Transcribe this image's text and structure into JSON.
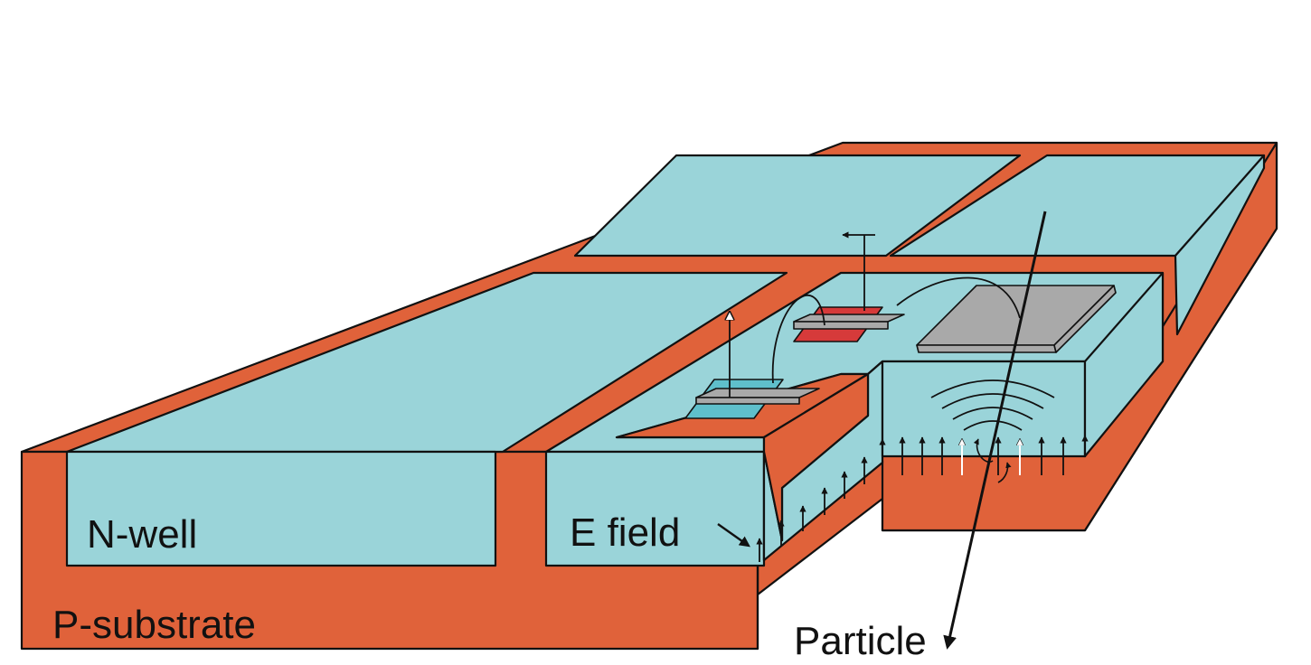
{
  "labels": {
    "nwell": "N-well",
    "efield": "E field",
    "substrate": "P-substrate",
    "particle": "Particle"
  },
  "colors": {
    "substrate": "#E0623A",
    "nwell": "#9AD4D9",
    "nplus": "#5FBFCB",
    "pplus": "#D63A3A",
    "gate": "#A9A9A9",
    "line": "#111111"
  }
}
